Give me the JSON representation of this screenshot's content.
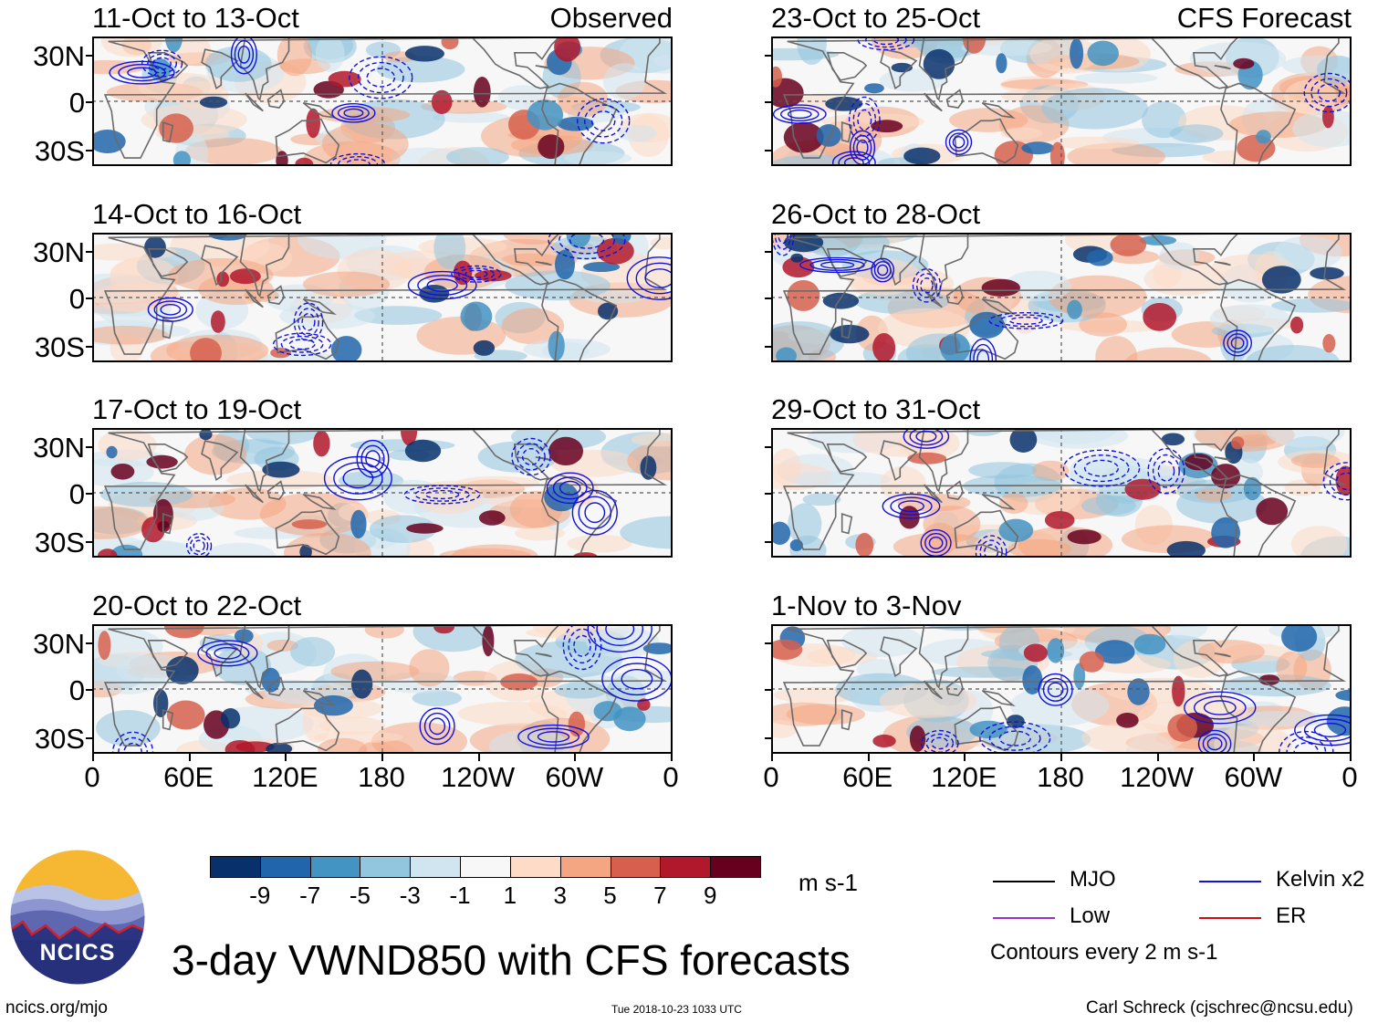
{
  "title": "3-day VWND850 with CFS forecasts",
  "observed_tag": "Observed",
  "forecast_tag": "CFS Forecast",
  "lat_labels": [
    "30N",
    "0",
    "30S"
  ],
  "lon_labels": [
    "0",
    "60E",
    "120E",
    "180",
    "120W",
    "60W",
    "0"
  ],
  "observed_panels": [
    {
      "title": "11-Oct to 13-Oct"
    },
    {
      "title": "14-Oct to 16-Oct"
    },
    {
      "title": "17-Oct to 19-Oct"
    },
    {
      "title": "20-Oct to 22-Oct"
    }
  ],
  "forecast_panels": [
    {
      "title": "23-Oct to 25-Oct"
    },
    {
      "title": "26-Oct to 28-Oct"
    },
    {
      "title": "29-Oct to 31-Oct"
    },
    {
      "title": "1-Nov to 3-Nov"
    }
  ],
  "colorbar": {
    "unit": "m s-1",
    "labels": [
      "-9",
      "-7",
      "-5",
      "-3",
      "-1",
      "1",
      "3",
      "5",
      "7",
      "9"
    ],
    "colors": [
      "#08306b",
      "#2166ac",
      "#4393c3",
      "#92c5de",
      "#d1e5f0",
      "#f7f7f7",
      "#fddbc7",
      "#f4a582",
      "#d6604d",
      "#b2182b",
      "#67001f"
    ]
  },
  "legend": {
    "items": [
      {
        "label": "MJO",
        "color": "#000000"
      },
      {
        "label": "Kelvin x2",
        "color": "#1010e0"
      },
      {
        "label": "Low",
        "color": "#9932cc"
      },
      {
        "label": "ER",
        "color": "#d01010"
      }
    ],
    "note": "Contours every 2 m s-1"
  },
  "logo_text": "NCICS",
  "footer": {
    "left": "ncics.org/mjo",
    "center": "Tue 2018-10-23 1033 UTC",
    "right": "Carl Schreck (cjschrec@ncsu.edu)"
  }
}
